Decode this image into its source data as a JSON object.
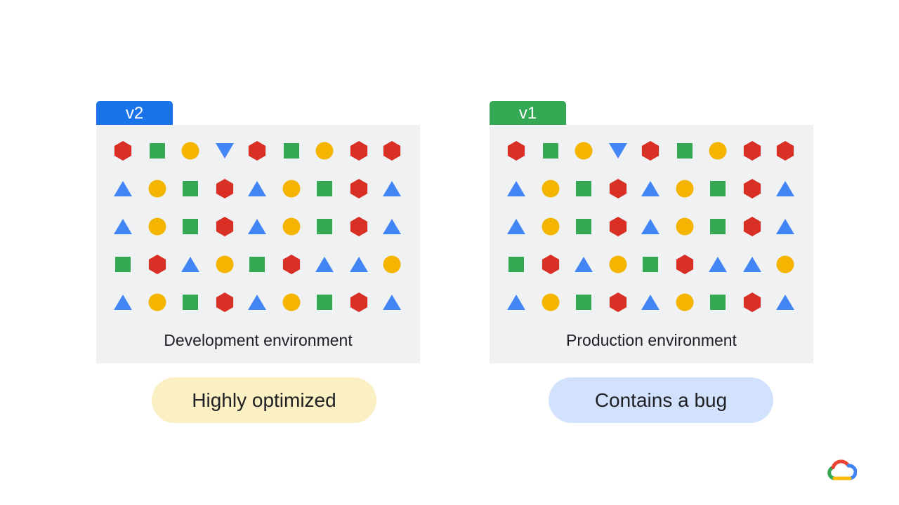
{
  "colors": {
    "red": "#d93025",
    "green": "#34a853",
    "yellow": "#f4b400",
    "blue": "#4285f4",
    "tab_v2": "#1a73e8",
    "tab_v1": "#34a853",
    "pill_yellow": "#fbefc4",
    "pill_blue": "#d2e2fc"
  },
  "environments": [
    {
      "tab_label": "v2",
      "tab_color": "#1a73e8",
      "label": "Development environment",
      "shapes": [
        [
          "hexagon",
          "square",
          "circle",
          "triangle-down",
          "hexagon",
          "square",
          "circle",
          "hexagon",
          "hexagon"
        ],
        [
          "triangle",
          "circle",
          "square",
          "hexagon",
          "triangle",
          "circle",
          "square",
          "hexagon",
          "triangle"
        ],
        [
          "triangle",
          "circle",
          "square",
          "hexagon",
          "triangle",
          "circle",
          "square",
          "hexagon",
          "triangle"
        ],
        [
          "square",
          "hexagon",
          "triangle",
          "circle",
          "square",
          "hexagon",
          "triangle",
          "triangle",
          "circle"
        ],
        [
          "triangle",
          "circle",
          "square",
          "hexagon",
          "triangle",
          "circle",
          "square",
          "hexagon",
          "triangle"
        ]
      ]
    },
    {
      "tab_label": "v1",
      "tab_color": "#34a853",
      "label": "Production environment",
      "shapes": [
        [
          "hexagon",
          "square",
          "circle",
          "triangle-down",
          "hexagon",
          "square",
          "circle",
          "hexagon",
          "hexagon"
        ],
        [
          "triangle",
          "circle",
          "square",
          "hexagon",
          "triangle",
          "circle",
          "square",
          "hexagon",
          "triangle"
        ],
        [
          "triangle",
          "circle",
          "square",
          "hexagon",
          "triangle",
          "circle",
          "square",
          "hexagon",
          "triangle"
        ],
        [
          "square",
          "hexagon",
          "triangle",
          "circle",
          "square",
          "hexagon",
          "triangle",
          "triangle",
          "circle"
        ],
        [
          "triangle",
          "circle",
          "square",
          "hexagon",
          "triangle",
          "circle",
          "square",
          "hexagon",
          "triangle"
        ]
      ]
    }
  ],
  "pills": [
    {
      "label": "Highly optimized",
      "color": "#fbefc4"
    },
    {
      "label": "Contains a bug",
      "color": "#d2e2fc"
    }
  ],
  "logo": {
    "icon": "google-cloud-logo"
  }
}
